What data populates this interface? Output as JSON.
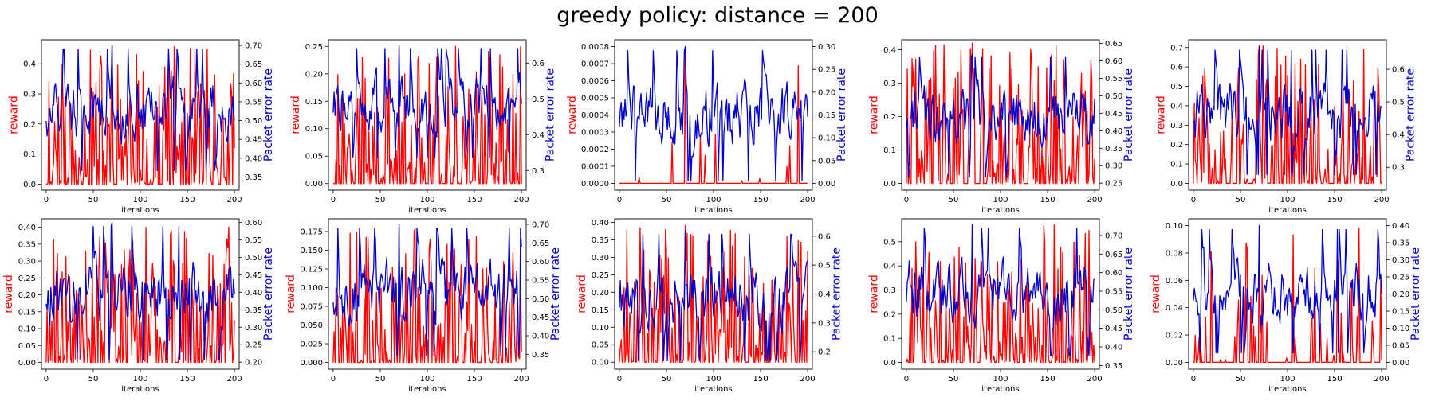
{
  "figure": {
    "title": "greedy policy: distance = 200",
    "colors": {
      "reward": "#ff0000",
      "per": "#0000cc",
      "axis": "#000000"
    }
  },
  "chart_data": [
    {
      "type": "line",
      "xlabel": "iterations",
      "ylabel": "reward",
      "y2label": "Packet error rate",
      "xlim": [
        -5,
        205
      ],
      "ylim": [
        -0.02,
        0.48
      ],
      "y2lim": [
        0.315,
        0.715
      ],
      "x_ticks": [
        0,
        50,
        100,
        150,
        200
      ],
      "y_ticks": [
        0.0,
        0.1,
        0.2,
        0.3,
        0.4
      ],
      "y_tick_labels": [
        "0.0",
        "0.1",
        "0.2",
        "0.3",
        "0.4"
      ],
      "y2_ticks": [
        0.35,
        0.4,
        0.45,
        0.5,
        0.55,
        0.6,
        0.65,
        0.7
      ],
      "y2_tick_labels": [
        "0.35",
        "0.40",
        "0.45",
        "0.50",
        "0.55",
        "0.60",
        "0.65",
        "0.70"
      ],
      "series": [
        {
          "name": "reward",
          "axis": "left",
          "color": "#ff0000",
          "min": 0.0,
          "max": 0.46,
          "zero_frac": 0.3,
          "seed": 11
        },
        {
          "name": "Packet error rate",
          "axis": "right",
          "color": "#0000cc",
          "min": 0.36,
          "max": 0.7,
          "seed": 12
        }
      ]
    },
    {
      "type": "line",
      "xlabel": "iterations",
      "ylabel": "reward",
      "y2label": "Packet error rate",
      "xlim": [
        -5,
        205
      ],
      "ylim": [
        -0.012,
        0.262
      ],
      "y2lim": [
        0.245,
        0.665
      ],
      "x_ticks": [
        0,
        50,
        100,
        150,
        200
      ],
      "y_ticks": [
        0.0,
        0.05,
        0.1,
        0.15,
        0.2,
        0.25
      ],
      "y_tick_labels": [
        "0.00",
        "0.05",
        "0.10",
        "0.15",
        "0.20",
        "0.25"
      ],
      "y2_ticks": [
        0.3,
        0.4,
        0.5,
        0.6
      ],
      "y2_tick_labels": [
        "0.3",
        "0.4",
        "0.5",
        "0.6"
      ],
      "series": [
        {
          "name": "reward",
          "axis": "left",
          "color": "#ff0000",
          "min": 0.0,
          "max": 0.25,
          "zero_frac": 0.35,
          "seed": 21
        },
        {
          "name": "Packet error rate",
          "axis": "right",
          "color": "#0000cc",
          "min": 0.33,
          "max": 0.65,
          "seed": 22
        }
      ]
    },
    {
      "type": "line",
      "xlabel": "iterations",
      "ylabel": "reward",
      "y2label": "Packet error rate",
      "xlim": [
        -5,
        205
      ],
      "ylim": [
        -4e-05,
        0.00084
      ],
      "y2lim": [
        -0.015,
        0.315
      ],
      "x_ticks": [
        0,
        50,
        100,
        150,
        200
      ],
      "y_ticks": [
        0,
        0.0001,
        0.0002,
        0.0003,
        0.0004,
        0.0005,
        0.0006,
        0.0007,
        0.0008
      ],
      "y_tick_labels": [
        "0.0000",
        "0.0001",
        "0.0002",
        "0.0003",
        "0.0004",
        "0.0005",
        "0.0006",
        "0.0007",
        "0.0008"
      ],
      "y2_ticks": [
        0.0,
        0.05,
        0.1,
        0.15,
        0.2,
        0.25,
        0.3
      ],
      "y2_tick_labels": [
        "0.00",
        "0.05",
        "0.10",
        "0.15",
        "0.20",
        "0.25",
        "0.30"
      ],
      "series": [
        {
          "name": "reward",
          "axis": "left",
          "color": "#ff0000",
          "min": 0.0,
          "max": 0.0008,
          "zero_frac": 0.97,
          "seed": 31
        },
        {
          "name": "Packet error rate",
          "axis": "right",
          "color": "#0000cc",
          "min": 0.0,
          "max": 0.3,
          "seed": 32
        }
      ]
    },
    {
      "type": "line",
      "xlabel": "iterations",
      "ylabel": "reward",
      "y2label": "Packet error rate",
      "xlim": [
        -5,
        205
      ],
      "ylim": [
        -0.02,
        0.43
      ],
      "y2lim": [
        0.23,
        0.66
      ],
      "x_ticks": [
        0,
        50,
        100,
        150,
        200
      ],
      "y_ticks": [
        0.0,
        0.1,
        0.2,
        0.3,
        0.4
      ],
      "y_tick_labels": [
        "0.0",
        "0.1",
        "0.2",
        "0.3",
        "0.4"
      ],
      "y2_ticks": [
        0.25,
        0.3,
        0.35,
        0.4,
        0.45,
        0.5,
        0.55,
        0.6,
        0.65
      ],
      "y2_tick_labels": [
        "0.25",
        "0.30",
        "0.35",
        "0.40",
        "0.45",
        "0.50",
        "0.55",
        "0.60",
        "0.65"
      ],
      "series": [
        {
          "name": "reward",
          "axis": "left",
          "color": "#ff0000",
          "min": 0.0,
          "max": 0.42,
          "zero_frac": 0.3,
          "seed": 41
        },
        {
          "name": "Packet error rate",
          "axis": "right",
          "color": "#0000cc",
          "min": 0.26,
          "max": 0.62,
          "seed": 42
        }
      ]
    },
    {
      "type": "line",
      "xlabel": "iterations",
      "ylabel": "reward",
      "y2label": "Packet error rate",
      "xlim": [
        -5,
        205
      ],
      "ylim": [
        -0.035,
        0.74
      ],
      "y2lim": [
        0.23,
        0.69
      ],
      "x_ticks": [
        0,
        50,
        100,
        150,
        200
      ],
      "y_ticks": [
        0.0,
        0.1,
        0.2,
        0.3,
        0.4,
        0.5,
        0.6,
        0.7
      ],
      "y_tick_labels": [
        "0.0",
        "0.1",
        "0.2",
        "0.3",
        "0.4",
        "0.5",
        "0.6",
        "0.7"
      ],
      "y2_ticks": [
        0.3,
        0.4,
        0.5,
        0.6
      ],
      "y2_tick_labels": [
        "0.3",
        "0.4",
        "0.5",
        "0.6"
      ],
      "series": [
        {
          "name": "reward",
          "axis": "left",
          "color": "#ff0000",
          "min": 0.0,
          "max": 0.71,
          "zero_frac": 0.4,
          "seed": 51
        },
        {
          "name": "Packet error rate",
          "axis": "right",
          "color": "#0000cc",
          "min": 0.27,
          "max": 0.67,
          "seed": 52
        }
      ]
    },
    {
      "type": "line",
      "xlabel": "iterations",
      "ylabel": "reward",
      "y2label": "Packet error rate",
      "xlim": [
        -5,
        205
      ],
      "ylim": [
        -0.02,
        0.425
      ],
      "y2lim": [
        0.18,
        0.61
      ],
      "x_ticks": [
        0,
        50,
        100,
        150,
        200
      ],
      "y_ticks": [
        0.0,
        0.05,
        0.1,
        0.15,
        0.2,
        0.25,
        0.3,
        0.35,
        0.4
      ],
      "y_tick_labels": [
        "0.00",
        "0.05",
        "0.10",
        "0.15",
        "0.20",
        "0.25",
        "0.30",
        "0.35",
        "0.40"
      ],
      "y2_ticks": [
        0.2,
        0.25,
        0.3,
        0.35,
        0.4,
        0.45,
        0.5,
        0.55,
        0.6
      ],
      "y2_tick_labels": [
        "0.20",
        "0.25",
        "0.30",
        "0.35",
        "0.40",
        "0.45",
        "0.50",
        "0.55",
        "0.60"
      ],
      "series": [
        {
          "name": "reward",
          "axis": "left",
          "color": "#ff0000",
          "min": 0.0,
          "max": 0.41,
          "zero_frac": 0.35,
          "seed": 61
        },
        {
          "name": "Packet error rate",
          "axis": "right",
          "color": "#0000cc",
          "min": 0.2,
          "max": 0.6,
          "seed": 62
        }
      ]
    },
    {
      "type": "line",
      "xlabel": "iterations",
      "ylabel": "reward",
      "y2label": "Packet error rate",
      "xlim": [
        -5,
        205
      ],
      "ylim": [
        -0.009,
        0.192
      ],
      "y2lim": [
        0.31,
        0.715
      ],
      "x_ticks": [
        0,
        50,
        100,
        150,
        200
      ],
      "y_ticks": [
        0.0,
        0.025,
        0.05,
        0.075,
        0.1,
        0.125,
        0.15,
        0.175
      ],
      "y_tick_labels": [
        "0.000",
        "0.025",
        "0.050",
        "0.075",
        "0.100",
        "0.125",
        "0.150",
        "0.175"
      ],
      "y2_ticks": [
        0.35,
        0.4,
        0.45,
        0.5,
        0.55,
        0.6,
        0.65,
        0.7
      ],
      "y2_tick_labels": [
        "0.35",
        "0.40",
        "0.45",
        "0.50",
        "0.55",
        "0.60",
        "0.65",
        "0.70"
      ],
      "series": [
        {
          "name": "reward",
          "axis": "left",
          "color": "#ff0000",
          "min": 0.0,
          "max": 0.185,
          "zero_frac": 0.4,
          "seed": 71
        },
        {
          "name": "Packet error rate",
          "axis": "right",
          "color": "#0000cc",
          "min": 0.34,
          "max": 0.7,
          "seed": 72
        }
      ]
    },
    {
      "type": "line",
      "xlabel": "iterations",
      "ylabel": "reward",
      "y2label": "Packet error rate",
      "xlim": [
        -5,
        205
      ],
      "ylim": [
        -0.02,
        0.41
      ],
      "y2lim": [
        0.14,
        0.66
      ],
      "x_ticks": [
        0,
        50,
        100,
        150,
        200
      ],
      "y_ticks": [
        0.0,
        0.05,
        0.1,
        0.15,
        0.2,
        0.25,
        0.3,
        0.35,
        0.4
      ],
      "y_tick_labels": [
        "0.00",
        "0.05",
        "0.10",
        "0.15",
        "0.20",
        "0.25",
        "0.30",
        "0.35",
        "0.40"
      ],
      "y2_ticks": [
        0.2,
        0.3,
        0.4,
        0.5,
        0.6
      ],
      "y2_tick_labels": [
        "0.2",
        "0.3",
        "0.4",
        "0.5",
        "0.6"
      ],
      "series": [
        {
          "name": "reward",
          "axis": "left",
          "color": "#ff0000",
          "min": 0.0,
          "max": 0.39,
          "zero_frac": 0.35,
          "seed": 81
        },
        {
          "name": "Packet error rate",
          "axis": "right",
          "color": "#0000cc",
          "min": 0.16,
          "max": 0.62,
          "seed": 82
        }
      ]
    },
    {
      "type": "line",
      "xlabel": "iterations",
      "ylabel": "reward",
      "y2label": "Packet error rate",
      "xlim": [
        -5,
        205
      ],
      "ylim": [
        -0.028,
        0.595
      ],
      "y2lim": [
        0.34,
        0.745
      ],
      "x_ticks": [
        0,
        50,
        100,
        150,
        200
      ],
      "y_ticks": [
        0.0,
        0.1,
        0.2,
        0.3,
        0.4,
        0.5
      ],
      "y_tick_labels": [
        "0.0",
        "0.1",
        "0.2",
        "0.3",
        "0.4",
        "0.5"
      ],
      "y2_ticks": [
        0.35,
        0.4,
        0.45,
        0.5,
        0.55,
        0.6,
        0.65,
        0.7
      ],
      "y2_tick_labels": [
        "0.35",
        "0.40",
        "0.45",
        "0.50",
        "0.55",
        "0.60",
        "0.65",
        "0.70"
      ],
      "series": [
        {
          "name": "reward",
          "axis": "left",
          "color": "#ff0000",
          "min": 0.0,
          "max": 0.57,
          "zero_frac": 0.3,
          "seed": 91
        },
        {
          "name": "Packet error rate",
          "axis": "right",
          "color": "#0000cc",
          "min": 0.37,
          "max": 0.73,
          "seed": 92
        }
      ]
    },
    {
      "type": "line",
      "xlabel": "iterations",
      "ylabel": "reward",
      "y2label": "Packet error rate",
      "xlim": [
        -5,
        205
      ],
      "ylim": [
        -0.005,
        0.105
      ],
      "y2lim": [
        -0.02,
        0.42
      ],
      "x_ticks": [
        0,
        50,
        100,
        150,
        200
      ],
      "y_ticks": [
        0.0,
        0.02,
        0.04,
        0.06,
        0.08,
        0.1
      ],
      "y_tick_labels": [
        "0.00",
        "0.02",
        "0.04",
        "0.06",
        "0.08",
        "0.10"
      ],
      "y2_ticks": [
        0.0,
        0.05,
        0.1,
        0.15,
        0.2,
        0.25,
        0.3,
        0.35,
        0.4
      ],
      "y2_tick_labels": [
        "0.00",
        "0.05",
        "0.10",
        "0.15",
        "0.20",
        "0.25",
        "0.30",
        "0.35",
        "0.40"
      ],
      "series": [
        {
          "name": "reward",
          "axis": "left",
          "color": "#ff0000",
          "min": 0.0,
          "max": 0.1,
          "zero_frac": 0.75,
          "seed": 101
        },
        {
          "name": "Packet error rate",
          "axis": "right",
          "color": "#0000cc",
          "min": 0.02,
          "max": 0.4,
          "seed": 102
        }
      ]
    }
  ]
}
